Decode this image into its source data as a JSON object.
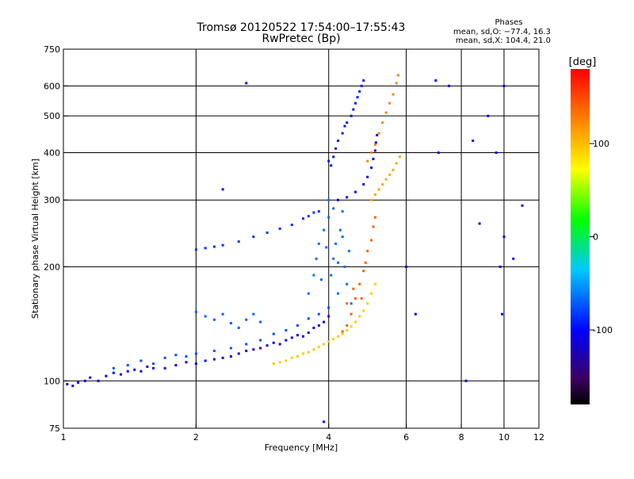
{
  "chart_data": {
    "type": "scatter",
    "title": "Tromsø 20120522 17:54:00–17:55:43",
    "subtitle": "RwPretec (Bp)",
    "xlabel": "Frequency [MHz]",
    "ylabel": "Stationary phase Virtual Height [km]",
    "x_scale": "log",
    "y_scale": "log",
    "xlim": [
      1,
      12
    ],
    "ylim": [
      75,
      750
    ],
    "x_ticks": [
      1,
      2,
      4,
      6,
      8,
      10,
      12
    ],
    "y_ticks": [
      75,
      100,
      200,
      300,
      400,
      500,
      600,
      750
    ],
    "x_tick_labels": [
      "1",
      "2",
      "4",
      "6",
      "8",
      "10",
      "12"
    ],
    "y_tick_labels": [
      "75",
      "100",
      "200",
      "300",
      "400",
      "500",
      "600",
      "750"
    ],
    "grid_x": [
      2,
      4,
      6,
      8,
      10
    ],
    "grid_y": [
      100,
      200,
      300,
      400,
      500,
      600
    ],
    "grid": true,
    "stats": {
      "heading": "Phases",
      "line1": "mean, sd,O: −77.4, 16.3",
      "line2": "mean, sd,X: 104.4, 21.0"
    },
    "colorbar": {
      "label": "[deg]",
      "range": [
        -180,
        180
      ],
      "ticks": [
        100,
        0,
        -100
      ],
      "tick_labels": [
        "100",
        "0",
        "-100"
      ],
      "colors": [
        "#000000",
        "#3c0064",
        "#0000ff",
        "#00c8ff",
        "#00ff00",
        "#ffff00",
        "#ff8000",
        "#ff0000"
      ]
    },
    "series": [
      {
        "phase": -110,
        "points": [
          [
            1.02,
            98
          ],
          [
            1.05,
            97
          ],
          [
            1.08,
            99
          ],
          [
            1.12,
            100
          ],
          [
            1.15,
            102
          ],
          [
            1.2,
            100
          ],
          [
            1.25,
            103
          ],
          [
            1.3,
            105
          ],
          [
            1.35,
            104
          ],
          [
            1.4,
            106
          ],
          [
            1.45,
            107
          ],
          [
            1.5,
            106
          ],
          [
            1.55,
            109
          ],
          [
            1.6,
            108
          ],
          [
            1.7,
            108
          ],
          [
            1.8,
            110
          ],
          [
            1.9,
            112
          ],
          [
            2.0,
            111
          ],
          [
            2.1,
            113
          ],
          [
            2.2,
            114
          ],
          [
            2.3,
            115
          ],
          [
            2.4,
            116
          ],
          [
            2.5,
            118
          ],
          [
            2.6,
            120
          ],
          [
            2.7,
            121
          ],
          [
            2.8,
            122
          ],
          [
            2.9,
            124
          ],
          [
            3.0,
            126
          ],
          [
            3.1,
            125
          ],
          [
            3.2,
            128
          ],
          [
            3.3,
            130
          ],
          [
            3.4,
            132
          ],
          [
            3.5,
            131
          ],
          [
            3.6,
            134
          ],
          [
            3.7,
            138
          ],
          [
            3.8,
            140
          ],
          [
            3.9,
            143
          ],
          [
            4.0,
            148
          ]
        ]
      },
      {
        "phase": -75,
        "points": [
          [
            1.3,
            108
          ],
          [
            1.4,
            110
          ],
          [
            1.5,
            113
          ],
          [
            1.6,
            111
          ],
          [
            1.7,
            115
          ],
          [
            1.8,
            117
          ],
          [
            1.9,
            116
          ],
          [
            2.0,
            118
          ],
          [
            2.2,
            120
          ],
          [
            2.4,
            122
          ],
          [
            2.6,
            125
          ],
          [
            2.8,
            128
          ],
          [
            3.0,
            133
          ],
          [
            3.2,
            136
          ],
          [
            3.4,
            140
          ],
          [
            3.6,
            146
          ],
          [
            3.8,
            150
          ],
          [
            4.0,
            156
          ]
        ]
      },
      {
        "phase": -70,
        "points": [
          [
            2.0,
            152
          ],
          [
            2.1,
            148
          ],
          [
            2.2,
            145
          ],
          [
            2.3,
            150
          ],
          [
            2.4,
            142
          ],
          [
            2.5,
            138
          ],
          [
            2.6,
            145
          ],
          [
            2.7,
            150
          ],
          [
            2.8,
            143
          ]
        ]
      },
      {
        "phase": -85,
        "points": [
          [
            2.0,
            222
          ],
          [
            2.1,
            224
          ],
          [
            2.2,
            226
          ],
          [
            2.3,
            228
          ],
          [
            2.5,
            233
          ],
          [
            2.7,
            240
          ],
          [
            2.9,
            246
          ],
          [
            3.1,
            252
          ],
          [
            3.3,
            258
          ],
          [
            3.5,
            268
          ],
          [
            3.6,
            272
          ],
          [
            3.7,
            278
          ],
          [
            3.8,
            280
          ]
        ]
      },
      {
        "phase": -65,
        "points": [
          [
            3.6,
            170
          ],
          [
            3.7,
            190
          ],
          [
            3.75,
            210
          ],
          [
            3.8,
            230
          ],
          [
            3.9,
            250
          ],
          [
            4.0,
            270
          ],
          [
            4.05,
            190
          ],
          [
            4.1,
            210
          ],
          [
            4.15,
            230
          ],
          [
            4.2,
            170
          ],
          [
            4.25,
            250
          ],
          [
            4.3,
            280
          ],
          [
            4.35,
            200
          ],
          [
            4.4,
            180
          ],
          [
            4.45,
            220
          ],
          [
            4.5,
            160
          ],
          [
            4.0,
            300
          ],
          [
            4.1,
            285
          ],
          [
            4.2,
            205
          ],
          [
            3.85,
            185
          ],
          [
            3.95,
            225
          ],
          [
            4.3,
            240
          ]
        ]
      },
      {
        "phase": -95,
        "points": [
          [
            4.0,
            380
          ],
          [
            4.05,
            370
          ],
          [
            4.1,
            390
          ],
          [
            4.15,
            410
          ],
          [
            4.2,
            430
          ],
          [
            4.3,
            450
          ],
          [
            4.35,
            470
          ],
          [
            4.4,
            480
          ],
          [
            4.5,
            500
          ],
          [
            4.55,
            520
          ],
          [
            4.6,
            540
          ],
          [
            4.65,
            560
          ],
          [
            4.7,
            580
          ],
          [
            4.75,
            600
          ],
          [
            4.8,
            620
          ]
        ]
      },
      {
        "phase": -110,
        "points": [
          [
            4.2,
            300
          ],
          [
            4.4,
            305
          ],
          [
            4.6,
            315
          ],
          [
            4.8,
            330
          ],
          [
            4.9,
            345
          ],
          [
            5.0,
            365
          ],
          [
            5.05,
            385
          ],
          [
            5.1,
            405
          ],
          [
            5.12,
            425
          ],
          [
            5.15,
            445
          ]
        ]
      },
      {
        "phase": 110,
        "points": [
          [
            5.0,
            300
          ],
          [
            5.1,
            310
          ],
          [
            5.2,
            320
          ],
          [
            5.3,
            330
          ],
          [
            5.4,
            340
          ],
          [
            5.5,
            350
          ],
          [
            5.6,
            360
          ],
          [
            5.7,
            375
          ],
          [
            5.8,
            390
          ]
        ]
      },
      {
        "phase": 125,
        "points": [
          [
            4.9,
            380
          ],
          [
            5.0,
            400
          ],
          [
            5.1,
            420
          ],
          [
            5.2,
            450
          ],
          [
            5.3,
            480
          ],
          [
            5.4,
            510
          ],
          [
            5.5,
            540
          ],
          [
            5.6,
            570
          ],
          [
            5.7,
            610
          ],
          [
            5.75,
            640
          ]
        ]
      },
      {
        "phase": 95,
        "points": [
          [
            3.0,
            111
          ],
          [
            3.1,
            112
          ],
          [
            3.2,
            113
          ],
          [
            3.3,
            115
          ],
          [
            3.4,
            116
          ],
          [
            3.5,
            118
          ],
          [
            3.6,
            119
          ],
          [
            3.7,
            121
          ],
          [
            3.8,
            123
          ],
          [
            3.9,
            125
          ],
          [
            4.0,
            127
          ],
          [
            4.1,
            129
          ],
          [
            4.2,
            131
          ],
          [
            4.3,
            133
          ],
          [
            4.4,
            136
          ],
          [
            4.5,
            139
          ],
          [
            4.6,
            143
          ],
          [
            4.7,
            148
          ],
          [
            4.8,
            153
          ],
          [
            4.9,
            160
          ],
          [
            5.0,
            170
          ],
          [
            5.1,
            180
          ]
        ]
      },
      {
        "phase": 140,
        "points": [
          [
            4.4,
            140
          ],
          [
            4.5,
            150
          ],
          [
            4.6,
            165
          ],
          [
            4.7,
            180
          ],
          [
            4.8,
            195
          ],
          [
            4.85,
            205
          ],
          [
            4.9,
            220
          ],
          [
            5.0,
            235
          ],
          [
            5.05,
            255
          ],
          [
            5.1,
            270
          ],
          [
            4.3,
            135
          ],
          [
            4.4,
            160
          ],
          [
            4.55,
            175
          ],
          [
            4.75,
            165
          ]
        ]
      },
      {
        "phase": -100,
        "points": [
          [
            2.3,
            320
          ],
          [
            2.6,
            610
          ],
          [
            3.9,
            78
          ],
          [
            6.0,
            200
          ],
          [
            6.3,
            150
          ],
          [
            7.0,
            620
          ],
          [
            7.5,
            600
          ],
          [
            7.1,
            400
          ],
          [
            8.2,
            100
          ],
          [
            8.5,
            430
          ],
          [
            8.8,
            260
          ],
          [
            9.2,
            500
          ],
          [
            9.6,
            400
          ],
          [
            9.8,
            200
          ],
          [
            10.0,
            240
          ],
          [
            10.5,
            210
          ],
          [
            11.0,
            290
          ],
          [
            9.9,
            150
          ],
          [
            10.0,
            600
          ]
        ]
      }
    ]
  }
}
